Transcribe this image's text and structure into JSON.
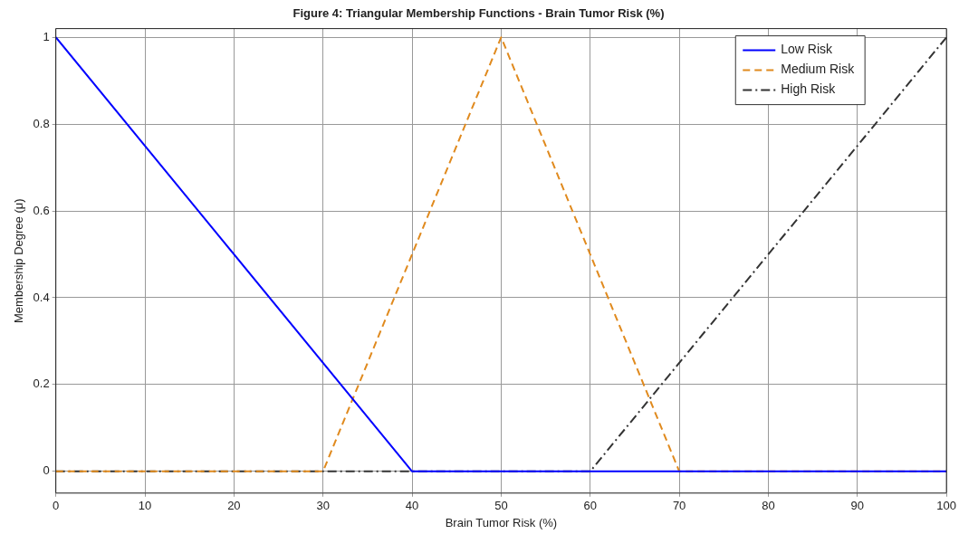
{
  "chart_data": {
    "type": "line",
    "title": "Figure 4: Triangular Membership Functions - Brain Tumor Risk (%)",
    "xlabel": "Brain Tumor Risk (%)",
    "ylabel": "Membership Degree (μ)",
    "series": [
      {
        "name": "Low Risk",
        "color": "#0000ff",
        "line_style": "solid",
        "x": [
          0,
          40,
          100
        ],
        "values": [
          1,
          0,
          0
        ]
      },
      {
        "name": "Medium Risk",
        "color": "#e08a1e",
        "line_style": "dashed",
        "x": [
          0,
          30,
          50,
          70,
          100
        ],
        "values": [
          0,
          0,
          1,
          0,
          0
        ]
      },
      {
        "name": "High Risk",
        "color": "#333333",
        "line_style": "dashdot",
        "x": [
          0,
          60,
          100
        ],
        "values": [
          0,
          0,
          1
        ]
      }
    ],
    "xlim": [
      0,
      100
    ],
    "xticks": [
      0,
      10,
      20,
      30,
      40,
      50,
      60,
      70,
      80,
      90,
      100
    ],
    "ylim": [
      -0.05,
      1.02
    ],
    "yticks": [
      0,
      0.2,
      0.4,
      0.6,
      0.8,
      1
    ],
    "grid": true,
    "legend": "top right",
    "marker": "none"
  }
}
